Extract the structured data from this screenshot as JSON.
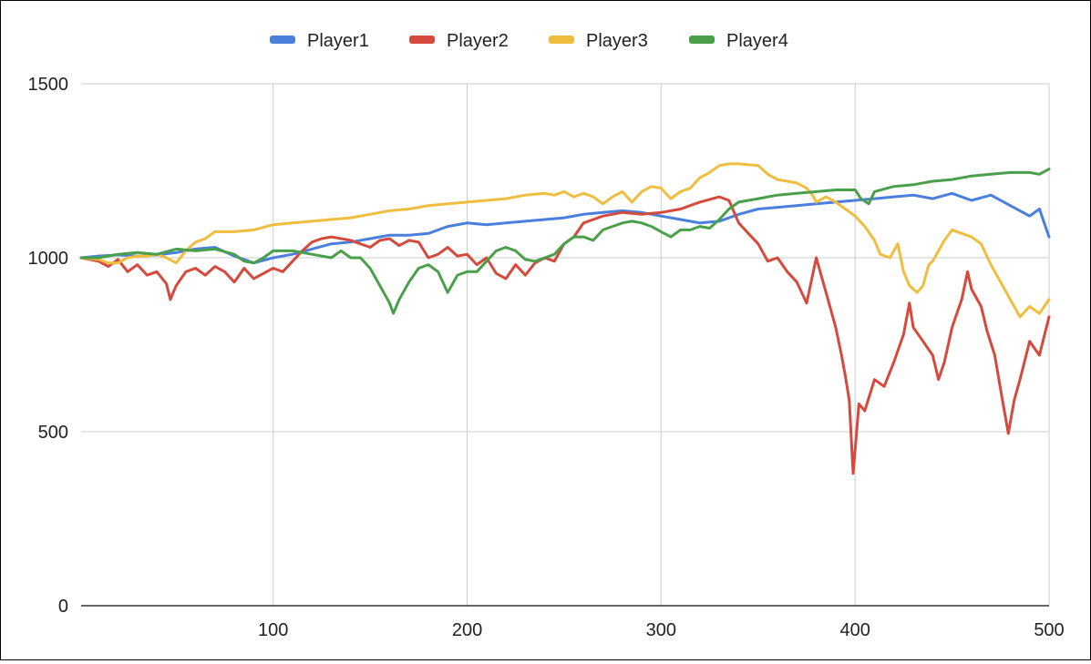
{
  "chart_data": {
    "type": "line",
    "title": "",
    "xlabel": "",
    "ylabel": "",
    "xlim": [
      1,
      500
    ],
    "ylim": [
      0,
      1500
    ],
    "x_ticks": [
      100,
      200,
      300,
      400,
      500
    ],
    "y_ticks": [
      0,
      500,
      1000,
      1500
    ],
    "grid": true,
    "legend_position": "top-center",
    "series": [
      {
        "name": "Player1",
        "color": "#4a7fdd",
        "points": [
          [
            1,
            1000
          ],
          [
            10,
            1005
          ],
          [
            20,
            1008
          ],
          [
            30,
            1005
          ],
          [
            40,
            1008
          ],
          [
            50,
            1015
          ],
          [
            60,
            1025
          ],
          [
            70,
            1030
          ],
          [
            80,
            1005
          ],
          [
            90,
            985
          ],
          [
            100,
            1000
          ],
          [
            110,
            1010
          ],
          [
            120,
            1025
          ],
          [
            130,
            1040
          ],
          [
            140,
            1045
          ],
          [
            150,
            1055
          ],
          [
            160,
            1065
          ],
          [
            170,
            1065
          ],
          [
            180,
            1070
          ],
          [
            190,
            1090
          ],
          [
            200,
            1100
          ],
          [
            210,
            1095
          ],
          [
            220,
            1100
          ],
          [
            230,
            1105
          ],
          [
            240,
            1110
          ],
          [
            250,
            1115
          ],
          [
            260,
            1125
          ],
          [
            270,
            1130
          ],
          [
            280,
            1135
          ],
          [
            290,
            1130
          ],
          [
            300,
            1120
          ],
          [
            310,
            1110
          ],
          [
            320,
            1100
          ],
          [
            330,
            1105
          ],
          [
            340,
            1125
          ],
          [
            350,
            1140
          ],
          [
            360,
            1145
          ],
          [
            370,
            1150
          ],
          [
            380,
            1155
          ],
          [
            390,
            1160
          ],
          [
            400,
            1165
          ],
          [
            410,
            1170
          ],
          [
            420,
            1175
          ],
          [
            430,
            1180
          ],
          [
            440,
            1170
          ],
          [
            450,
            1185
          ],
          [
            460,
            1165
          ],
          [
            470,
            1180
          ],
          [
            480,
            1150
          ],
          [
            490,
            1120
          ],
          [
            495,
            1140
          ],
          [
            500,
            1060
          ]
        ]
      },
      {
        "name": "Player2",
        "color": "#d54a3c",
        "points": [
          [
            1,
            1000
          ],
          [
            10,
            990
          ],
          [
            15,
            975
          ],
          [
            20,
            995
          ],
          [
            25,
            960
          ],
          [
            30,
            980
          ],
          [
            35,
            950
          ],
          [
            40,
            960
          ],
          [
            45,
            925
          ],
          [
            47,
            880
          ],
          [
            50,
            920
          ],
          [
            55,
            960
          ],
          [
            60,
            970
          ],
          [
            65,
            950
          ],
          [
            70,
            975
          ],
          [
            75,
            960
          ],
          [
            80,
            930
          ],
          [
            85,
            970
          ],
          [
            90,
            940
          ],
          [
            95,
            955
          ],
          [
            100,
            970
          ],
          [
            105,
            960
          ],
          [
            110,
            990
          ],
          [
            115,
            1020
          ],
          [
            120,
            1045
          ],
          [
            125,
            1055
          ],
          [
            130,
            1060
          ],
          [
            140,
            1050
          ],
          [
            150,
            1030
          ],
          [
            155,
            1050
          ],
          [
            160,
            1055
          ],
          [
            165,
            1035
          ],
          [
            170,
            1050
          ],
          [
            175,
            1045
          ],
          [
            180,
            1000
          ],
          [
            185,
            1010
          ],
          [
            190,
            1030
          ],
          [
            195,
            1005
          ],
          [
            200,
            1010
          ],
          [
            205,
            980
          ],
          [
            210,
            1000
          ],
          [
            215,
            955
          ],
          [
            220,
            940
          ],
          [
            225,
            980
          ],
          [
            230,
            950
          ],
          [
            235,
            985
          ],
          [
            240,
            1000
          ],
          [
            245,
            990
          ],
          [
            250,
            1040
          ],
          [
            255,
            1060
          ],
          [
            260,
            1100
          ],
          [
            265,
            1110
          ],
          [
            270,
            1120
          ],
          [
            280,
            1130
          ],
          [
            290,
            1125
          ],
          [
            300,
            1130
          ],
          [
            310,
            1140
          ],
          [
            320,
            1160
          ],
          [
            330,
            1175
          ],
          [
            335,
            1165
          ],
          [
            340,
            1100
          ],
          [
            345,
            1070
          ],
          [
            350,
            1040
          ],
          [
            355,
            990
          ],
          [
            360,
            1000
          ],
          [
            365,
            960
          ],
          [
            370,
            930
          ],
          [
            375,
            870
          ],
          [
            380,
            1000
          ],
          [
            385,
            900
          ],
          [
            390,
            800
          ],
          [
            393,
            720
          ],
          [
            395,
            660
          ],
          [
            397,
            590
          ],
          [
            399,
            380
          ],
          [
            402,
            580
          ],
          [
            405,
            560
          ],
          [
            410,
            650
          ],
          [
            415,
            630
          ],
          [
            420,
            700
          ],
          [
            425,
            780
          ],
          [
            428,
            870
          ],
          [
            430,
            800
          ],
          [
            435,
            760
          ],
          [
            440,
            720
          ],
          [
            443,
            650
          ],
          [
            446,
            700
          ],
          [
            450,
            800
          ],
          [
            455,
            880
          ],
          [
            458,
            960
          ],
          [
            460,
            910
          ],
          [
            465,
            860
          ],
          [
            468,
            790
          ],
          [
            472,
            720
          ],
          [
            476,
            590
          ],
          [
            479,
            495
          ],
          [
            482,
            590
          ],
          [
            485,
            650
          ],
          [
            490,
            760
          ],
          [
            495,
            720
          ],
          [
            500,
            830
          ]
        ]
      },
      {
        "name": "Player3",
        "color": "#efbe3e",
        "points": [
          [
            1,
            1000
          ],
          [
            10,
            995
          ],
          [
            15,
            985
          ],
          [
            20,
            985
          ],
          [
            25,
            1000
          ],
          [
            30,
            1005
          ],
          [
            35,
            1005
          ],
          [
            40,
            1010
          ],
          [
            45,
            1000
          ],
          [
            50,
            985
          ],
          [
            55,
            1020
          ],
          [
            60,
            1045
          ],
          [
            65,
            1055
          ],
          [
            70,
            1075
          ],
          [
            80,
            1075
          ],
          [
            90,
            1080
          ],
          [
            100,
            1095
          ],
          [
            110,
            1100
          ],
          [
            120,
            1105
          ],
          [
            130,
            1110
          ],
          [
            140,
            1115
          ],
          [
            150,
            1125
          ],
          [
            160,
            1135
          ],
          [
            170,
            1140
          ],
          [
            180,
            1150
          ],
          [
            190,
            1155
          ],
          [
            200,
            1160
          ],
          [
            210,
            1165
          ],
          [
            220,
            1170
          ],
          [
            230,
            1180
          ],
          [
            240,
            1185
          ],
          [
            245,
            1180
          ],
          [
            250,
            1190
          ],
          [
            255,
            1175
          ],
          [
            260,
            1185
          ],
          [
            265,
            1175
          ],
          [
            270,
            1155
          ],
          [
            275,
            1175
          ],
          [
            280,
            1190
          ],
          [
            285,
            1160
          ],
          [
            290,
            1190
          ],
          [
            295,
            1205
          ],
          [
            300,
            1200
          ],
          [
            305,
            1170
          ],
          [
            310,
            1190
          ],
          [
            315,
            1200
          ],
          [
            320,
            1230
          ],
          [
            325,
            1245
          ],
          [
            330,
            1265
          ],
          [
            335,
            1270
          ],
          [
            340,
            1270
          ],
          [
            350,
            1265
          ],
          [
            355,
            1240
          ],
          [
            360,
            1225
          ],
          [
            365,
            1220
          ],
          [
            370,
            1215
          ],
          [
            375,
            1200
          ],
          [
            378,
            1180
          ],
          [
            380,
            1160
          ],
          [
            385,
            1175
          ],
          [
            390,
            1160
          ],
          [
            395,
            1140
          ],
          [
            400,
            1120
          ],
          [
            405,
            1090
          ],
          [
            410,
            1050
          ],
          [
            413,
            1010
          ],
          [
            418,
            1000
          ],
          [
            422,
            1040
          ],
          [
            425,
            960
          ],
          [
            428,
            920
          ],
          [
            432,
            900
          ],
          [
            435,
            920
          ],
          [
            438,
            980
          ],
          [
            440,
            990
          ],
          [
            443,
            1020
          ],
          [
            446,
            1050
          ],
          [
            450,
            1080
          ],
          [
            455,
            1070
          ],
          [
            460,
            1060
          ],
          [
            465,
            1040
          ],
          [
            470,
            980
          ],
          [
            475,
            930
          ],
          [
            480,
            880
          ],
          [
            485,
            830
          ],
          [
            490,
            860
          ],
          [
            495,
            840
          ],
          [
            500,
            880
          ]
        ]
      },
      {
        "name": "Player4",
        "color": "#4aa04a",
        "points": [
          [
            1,
            1000
          ],
          [
            10,
            1000
          ],
          [
            20,
            1010
          ],
          [
            30,
            1015
          ],
          [
            40,
            1010
          ],
          [
            50,
            1025
          ],
          [
            60,
            1020
          ],
          [
            70,
            1025
          ],
          [
            80,
            1010
          ],
          [
            85,
            990
          ],
          [
            90,
            985
          ],
          [
            95,
            1000
          ],
          [
            100,
            1020
          ],
          [
            110,
            1020
          ],
          [
            120,
            1010
          ],
          [
            130,
            1000
          ],
          [
            135,
            1020
          ],
          [
            140,
            1000
          ],
          [
            145,
            1000
          ],
          [
            150,
            970
          ],
          [
            155,
            920
          ],
          [
            160,
            870
          ],
          [
            162,
            840
          ],
          [
            165,
            880
          ],
          [
            170,
            930
          ],
          [
            175,
            970
          ],
          [
            180,
            980
          ],
          [
            185,
            960
          ],
          [
            190,
            900
          ],
          [
            195,
            950
          ],
          [
            200,
            960
          ],
          [
            205,
            960
          ],
          [
            210,
            990
          ],
          [
            215,
            1020
          ],
          [
            220,
            1030
          ],
          [
            225,
            1020
          ],
          [
            230,
            995
          ],
          [
            235,
            990
          ],
          [
            240,
            1000
          ],
          [
            245,
            1010
          ],
          [
            250,
            1040
          ],
          [
            255,
            1060
          ],
          [
            260,
            1060
          ],
          [
            265,
            1050
          ],
          [
            270,
            1080
          ],
          [
            275,
            1090
          ],
          [
            280,
            1100
          ],
          [
            285,
            1105
          ],
          [
            290,
            1100
          ],
          [
            295,
            1090
          ],
          [
            300,
            1075
          ],
          [
            305,
            1060
          ],
          [
            310,
            1080
          ],
          [
            315,
            1080
          ],
          [
            320,
            1090
          ],
          [
            325,
            1085
          ],
          [
            330,
            1110
          ],
          [
            335,
            1140
          ],
          [
            340,
            1160
          ],
          [
            350,
            1170
          ],
          [
            360,
            1180
          ],
          [
            370,
            1185
          ],
          [
            380,
            1190
          ],
          [
            390,
            1195
          ],
          [
            400,
            1195
          ],
          [
            403,
            1170
          ],
          [
            407,
            1155
          ],
          [
            410,
            1190
          ],
          [
            420,
            1205
          ],
          [
            430,
            1210
          ],
          [
            440,
            1220
          ],
          [
            450,
            1225
          ],
          [
            460,
            1235
          ],
          [
            470,
            1240
          ],
          [
            480,
            1245
          ],
          [
            490,
            1245
          ],
          [
            495,
            1240
          ],
          [
            500,
            1255
          ]
        ]
      }
    ]
  }
}
